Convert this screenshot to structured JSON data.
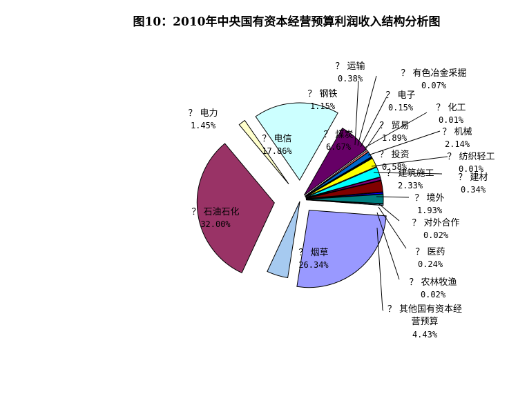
{
  "chart_data": {
    "type": "pie",
    "title": "图10：2010年中央国有资本经营预算利润收入结构分析图",
    "slices": [
      {
        "name": "其他国有资本经营预算",
        "value": 4.43,
        "display": "4.43%",
        "color": "#a6caf0"
      },
      {
        "name": "石油石化",
        "value": 32.0,
        "display": "32.00%",
        "color": "#993366"
      },
      {
        "name": "电力",
        "value": 1.45,
        "display": "1.45%",
        "color": "#ffffcc"
      },
      {
        "name": "电信",
        "value": 17.86,
        "display": "17.86%",
        "color": "#ccffff"
      },
      {
        "name": "煤炭",
        "value": 6.67,
        "display": "6.67%",
        "color": "#660066"
      },
      {
        "name": "运输",
        "value": 0.38,
        "display": "0.38%",
        "color": "#ff8080"
      },
      {
        "name": "钢铁",
        "value": 1.15,
        "display": "1.15%",
        "color": "#0066cc"
      },
      {
        "name": "有色冶金采掘",
        "value": 0.07,
        "display": "0.07%",
        "color": "#ccccff"
      },
      {
        "name": "电子",
        "value": 0.15,
        "display": "0.15%",
        "color": "#000080"
      },
      {
        "name": "化工",
        "value": 0.01,
        "display": "0.01%",
        "color": "#ff00ff"
      },
      {
        "name": "贸易",
        "value": 1.89,
        "display": "1.89%",
        "color": "#ffff00"
      },
      {
        "name": "机械",
        "value": 2.14,
        "display": "2.14%",
        "color": "#00ffff"
      },
      {
        "name": "投资",
        "value": 0.58,
        "display": "0.58%",
        "color": "#800080"
      },
      {
        "name": "纺织轻工",
        "value": 0.01,
        "display": "0.01%",
        "color": "#800000"
      },
      {
        "name": "建筑施工",
        "value": 2.33,
        "display": "2.33%",
        "color": "#800000"
      },
      {
        "name": "建材",
        "value": 0.34,
        "display": "0.34%",
        "color": "#0000ff"
      },
      {
        "name": "境外",
        "value": 1.93,
        "display": "1.93%",
        "color": "#008080"
      },
      {
        "name": "对外合作",
        "value": 0.02,
        "display": "0.02%",
        "color": "#000080"
      },
      {
        "name": "医药",
        "value": 0.24,
        "display": "0.24%",
        "color": "#99ccff"
      },
      {
        "name": "农林牧渔",
        "value": 0.02,
        "display": "0.02%",
        "color": "#ff6600"
      },
      {
        "name": "烟草",
        "value": 26.34,
        "display": "26.34%",
        "color": "#9999ff"
      }
    ],
    "label_prefix": "？",
    "legend": "none"
  }
}
